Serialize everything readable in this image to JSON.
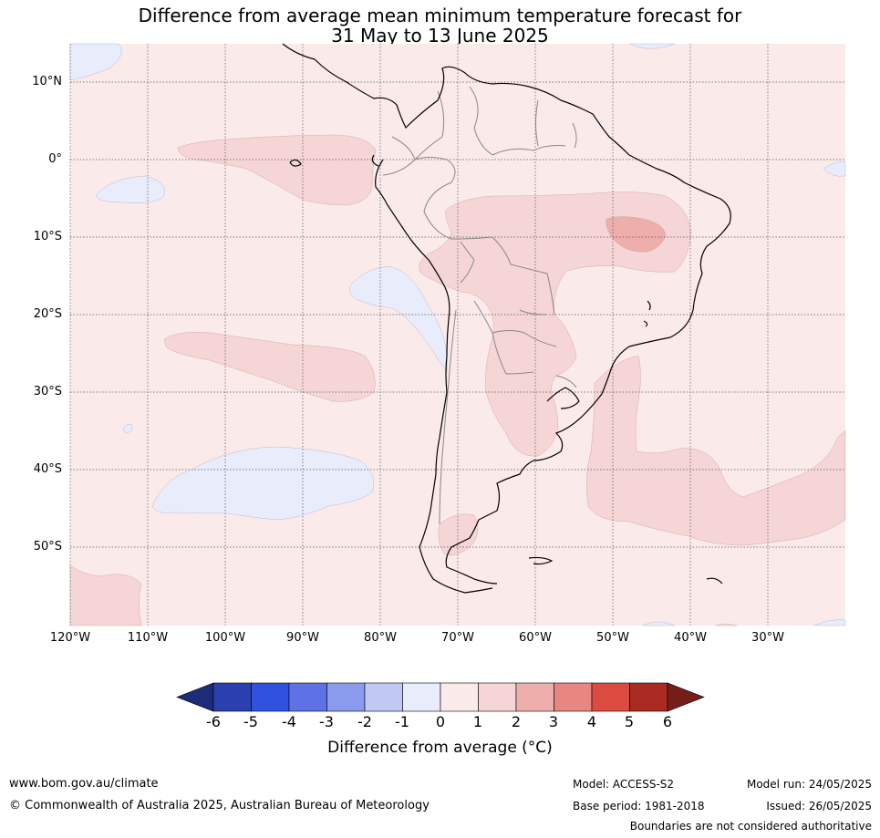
{
  "title_line1": "Difference from average mean minimum temperature forecast for",
  "title_line2": "31 May to 13 June 2025",
  "lat_labels": [
    "10°N",
    "0°",
    "10°S",
    "20°S",
    "30°S",
    "40°S",
    "50°S"
  ],
  "lon_labels": [
    "120°W",
    "110°W",
    "100°W",
    "90°W",
    "80°W",
    "70°W",
    "60°W",
    "50°W",
    "40°W",
    "30°W"
  ],
  "colorbar": {
    "ticks": [
      "-6",
      "-5",
      "-4",
      "-3",
      "-2",
      "-1",
      "0",
      "1",
      "2",
      "3",
      "4",
      "5",
      "6"
    ],
    "colors": [
      "#1c2c7a",
      "#2a40b0",
      "#3050e0",
      "#5d73e5",
      "#8a9bee",
      "#c0c8f4",
      "#e8ecfb",
      "#fbeaea",
      "#f5d5d5",
      "#eeaeab",
      "#e88680",
      "#db4b3f",
      "#a92b22",
      "#751d18"
    ],
    "title": "Difference from average (°C)"
  },
  "footer": {
    "website": "www.bom.gov.au/climate",
    "copyright": "© Commonwealth of Australia 2025, Australian Bureau of Meteorology",
    "model": "Model: ACCESS-S2",
    "base_period": "Base period: 1981-2018",
    "model_run": "Model run: 24/05/2025",
    "issued": "Issued: 26/05/2025",
    "disclaimer": "Boundaries are not considered authoritative"
  }
}
